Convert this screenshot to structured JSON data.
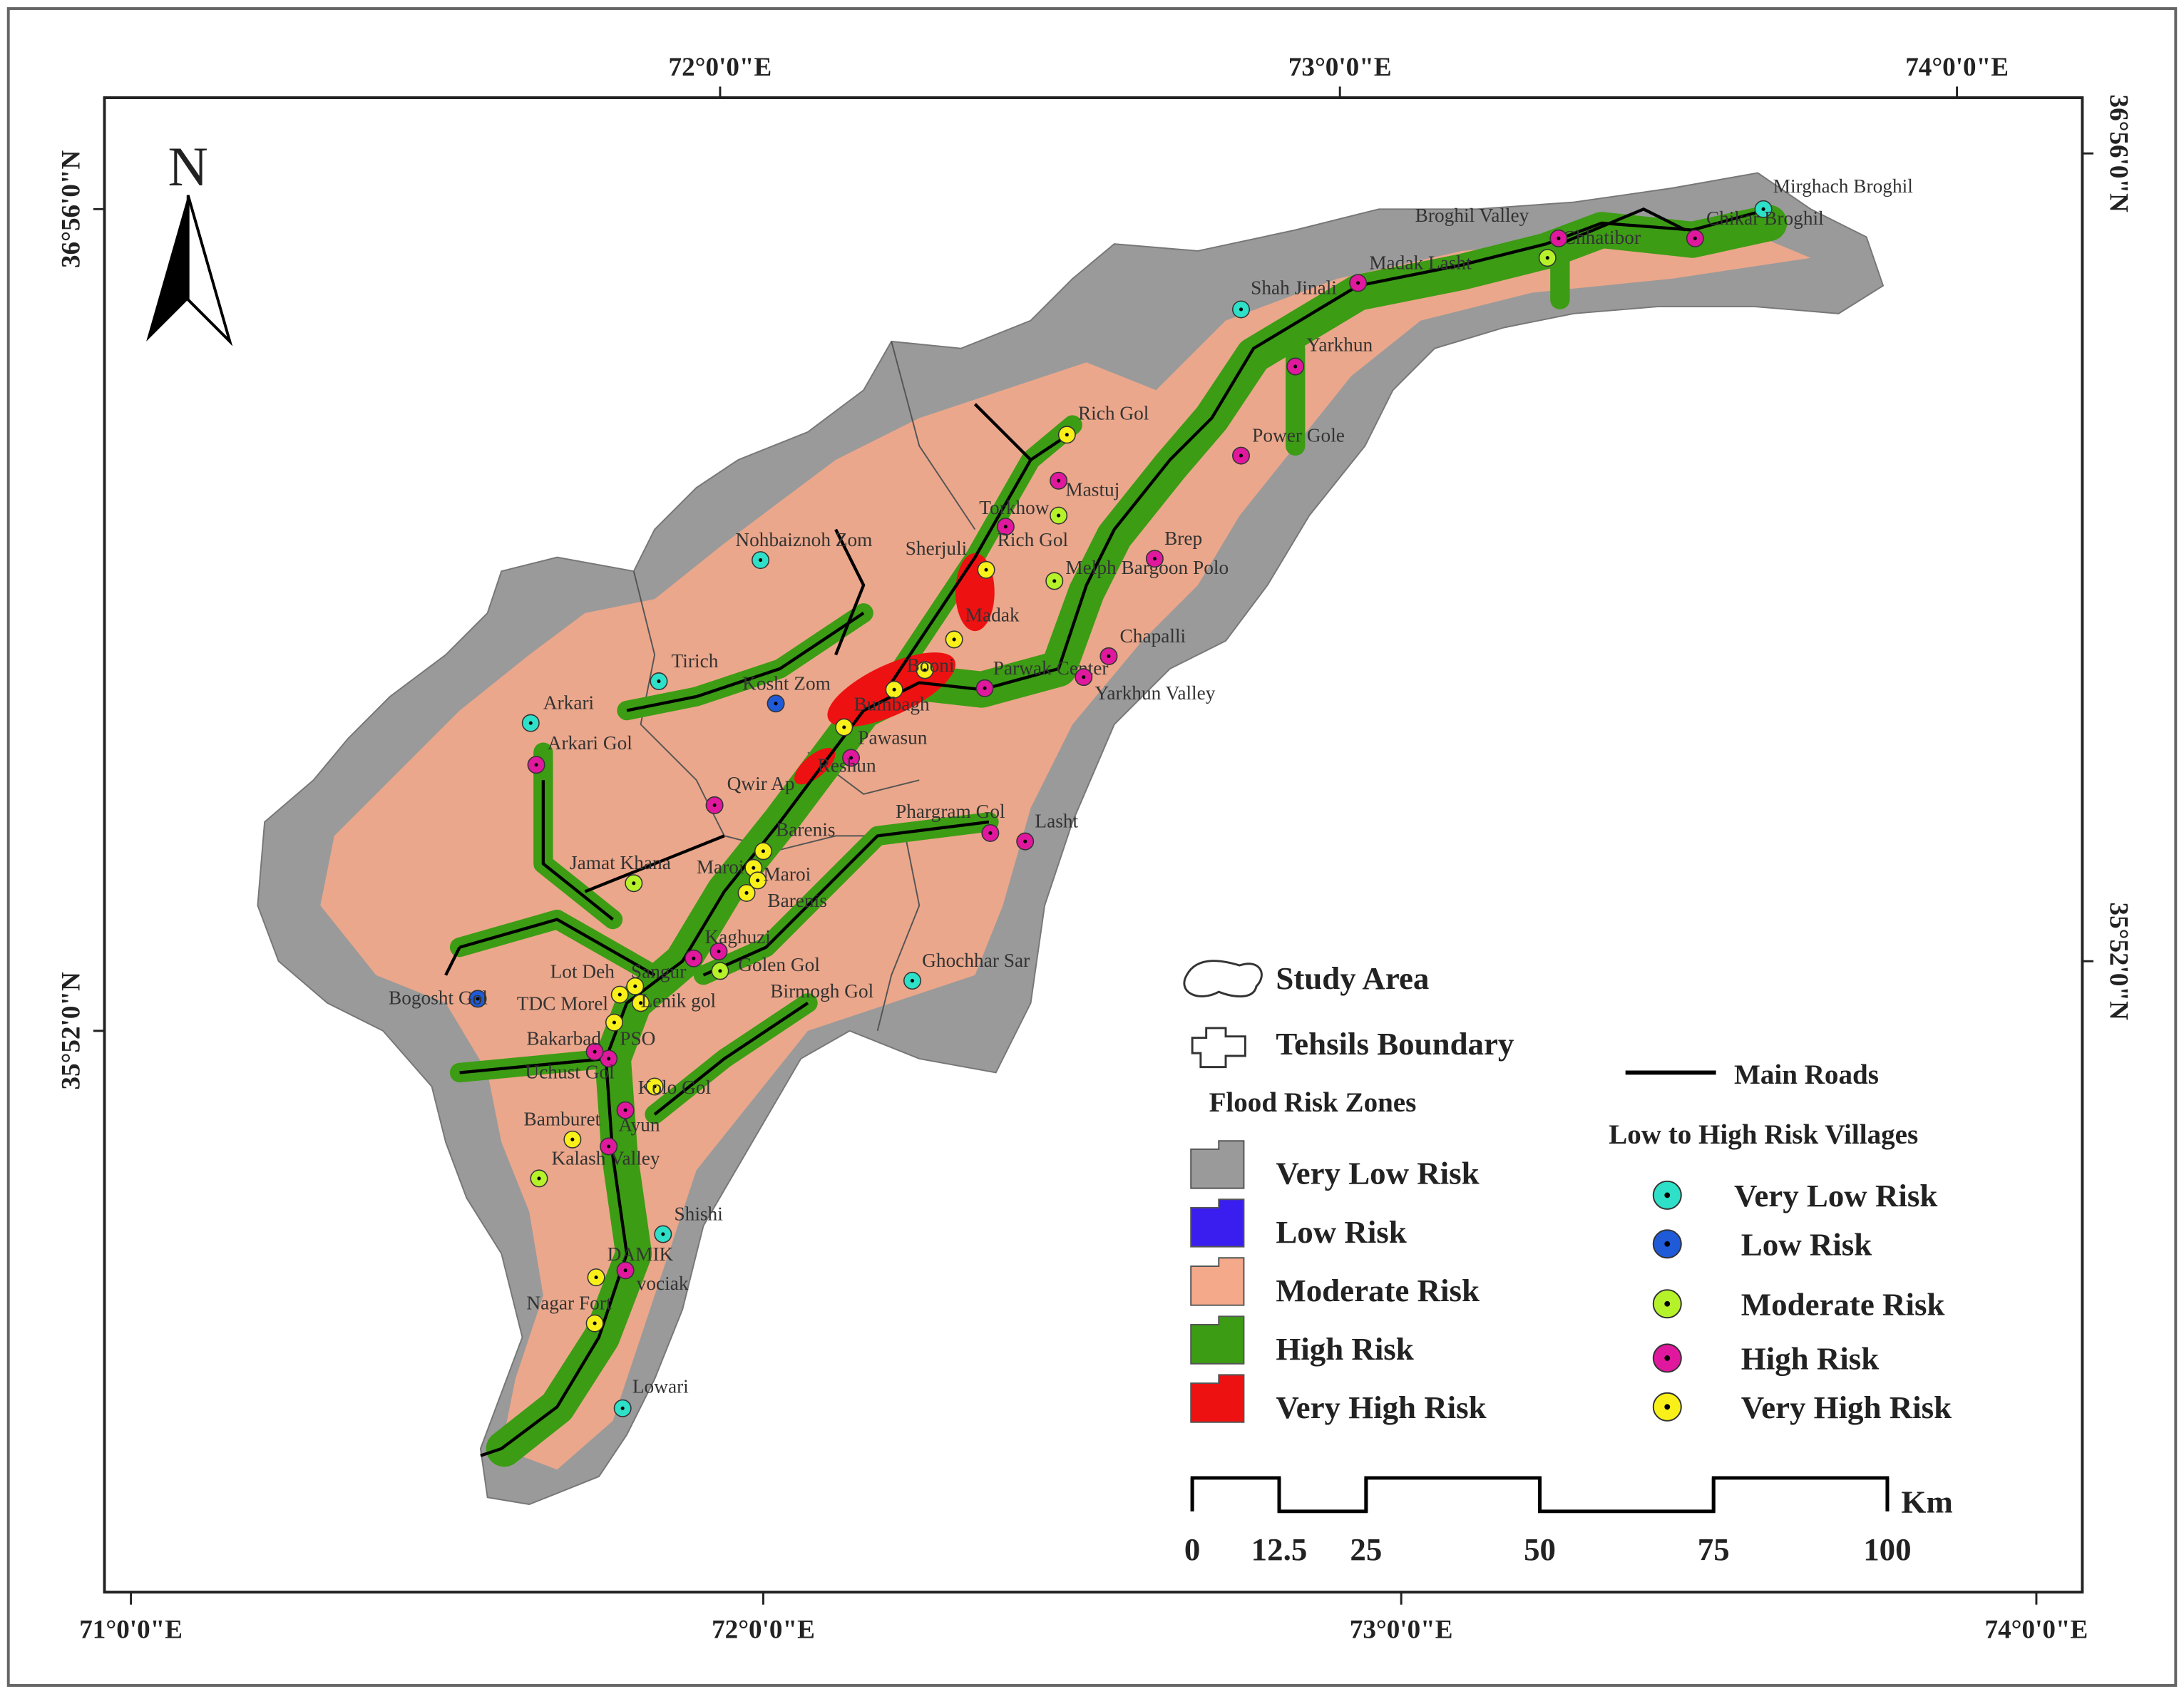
{
  "north_arrow": "N",
  "top_axis_labels": [
    "72°0'0\"E",
    "73°0'0\"E",
    "74°0'0\"E"
  ],
  "bottom_axis_labels": [
    "71°0'0\"E",
    "72°0'0\"E",
    "73°0'0\"E",
    "74°0'0\"E"
  ],
  "left_axis_labels": [
    "36°56'0\"N",
    "35°52'0\"N"
  ],
  "right_axis_labels": [
    "36°56'0\"N",
    "35°52'0\"N"
  ],
  "legend": {
    "study_area": "Study Area",
    "tehsils_boundary": "Tehsils Boundary",
    "flood_risk_zones": {
      "title": "Flood Risk Zones",
      "items": [
        {
          "label": "Very Low Risk",
          "color": "#9a9a9a"
        },
        {
          "label": "Low Risk",
          "color": "#3a1ef0"
        },
        {
          "label": "Moderate Risk",
          "color": "#f4a98a"
        },
        {
          "label": "High Risk",
          "color": "#3c9c14"
        },
        {
          "label": "Very High Risk",
          "color": "#ee1111"
        }
      ]
    },
    "main_roads": "Main Roads",
    "villages": {
      "title": "Low to High Risk Villages",
      "items": [
        {
          "label": "Very Low Risk",
          "color": "#2ee0c8",
          "villages": [
            "Mirghach Broghil",
            "Shah Jinali",
            "Nohbaiznoh Zom",
            "Tirich",
            "Arkari",
            "Ghochhar Sar",
            "Shishi",
            "Lowari"
          ]
        },
        {
          "label": "Low Risk",
          "color": "#1f5ad8",
          "villages": [
            "Kosht Zom",
            "Bogosht Gol"
          ]
        },
        {
          "label": "Moderate Risk",
          "color": "#b6f22a",
          "villages": [
            "Chhatibor",
            "Torkhow",
            "Melph Bargoon Polo",
            "Jamat Khana",
            "Golen Gol",
            "Kalash Valley"
          ]
        },
        {
          "label": "High Risk",
          "color": "#e0189e",
          "villages": [
            "Broghil Valley",
            "Chikar Broghil",
            "Madak Lasht",
            "Yarkhun",
            "Power Gole",
            "Mastuj",
            "Rich Gol",
            "Brep",
            "Chapalli",
            "Parwak Center",
            "Yarkhun Valley",
            "Reshun",
            "Qwir Ap",
            "Phargram Gol",
            "Lasht",
            "Arkari Gol",
            "Kaghuzi",
            "Birmogh Gol",
            "PSO",
            "Bakarbad",
            "Uchust Gol",
            "Ayun",
            "vociak"
          ]
        },
        {
          "label": "Very High Risk",
          "color": "#f8f018",
          "villages": [
            "Rich Gol",
            "Sherjuli",
            "Madak",
            "Booni",
            "Bumbagh",
            "Pawasun",
            "Barenis",
            "Maroi",
            "Maroi",
            "Barenis",
            "Lot Deh",
            "Sangur",
            "TDC Morel",
            "Lenik gol",
            "Kolo Gol",
            "Bamburet",
            "DAMIK",
            "Nagar Fort"
          ]
        }
      ]
    }
  },
  "scale_bar": {
    "unit": "Km",
    "labels": [
      0,
      12.5,
      25,
      50,
      75,
      100
    ]
  }
}
